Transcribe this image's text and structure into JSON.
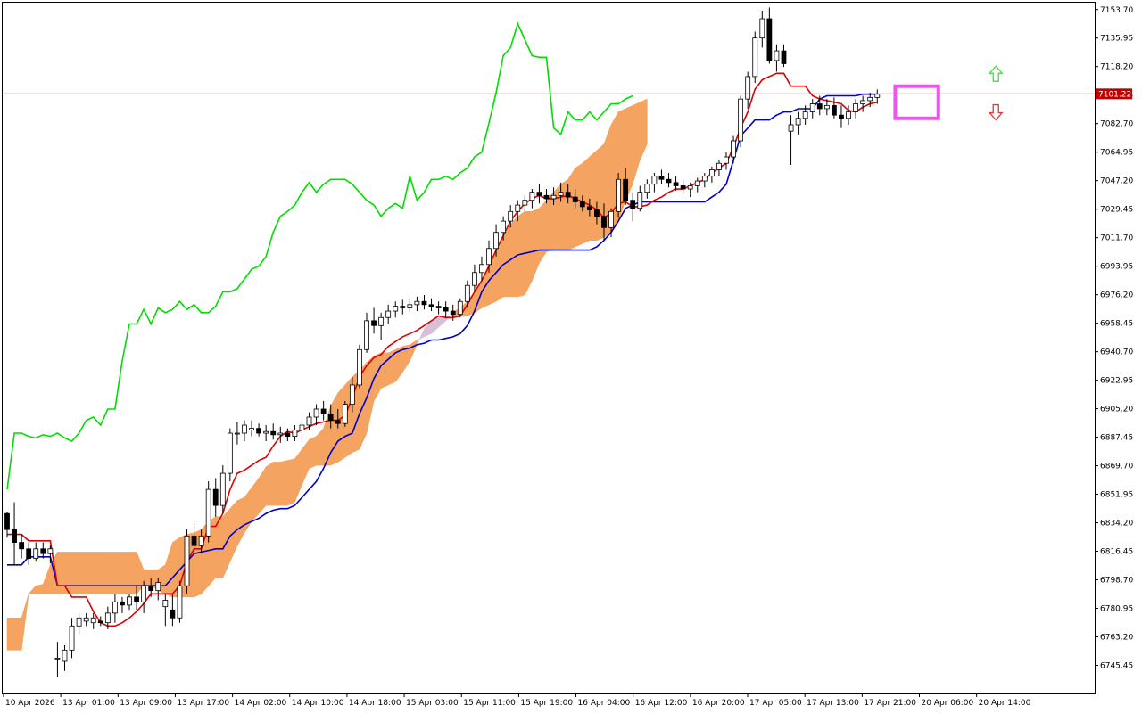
{
  "chart_data": {
    "type": "candlestick",
    "indicator": "Ichimoku Kinko Hyo",
    "price_axis": {
      "labels": [
        "7153.70",
        "7135.95",
        "7118.20",
        "7100.45",
        "7082.70",
        "7064.95",
        "7047.20",
        "7029.45",
        "7011.70",
        "6993.95",
        "6976.20",
        "6958.45",
        "6940.70",
        "6922.95",
        "6905.20",
        "6887.45",
        "6869.70",
        "6851.95",
        "6834.20",
        "6816.45",
        "6798.70",
        "6780.95",
        "6763.20",
        "6745.45"
      ],
      "range": [
        6728,
        7158
      ]
    },
    "time_axis": {
      "labels": [
        "10 Apr 2026",
        "13 Apr 01:00",
        "13 Apr 09:00",
        "13 Apr 17:00",
        "14 Apr 02:00",
        "14 Apr 10:00",
        "14 Apr 18:00",
        "15 Apr 03:00",
        "15 Apr 11:00",
        "15 Apr 19:00",
        "16 Apr 04:00",
        "16 Apr 12:00",
        "16 Apr 20:00",
        "17 Apr 05:00",
        "17 Apr 13:00",
        "17 Apr 21:00",
        "20 Apr 06:00",
        "20 Apr 14:00"
      ]
    },
    "current_price": {
      "label": "7101.22",
      "value": 7101.22,
      "color": "#c00000"
    },
    "colors": {
      "tenkan": "#dd0000",
      "kijun": "#0000cc",
      "chikou": "#00dd00",
      "kumo_bull": "#f4a460",
      "kumo_bear": "#d8bfd8",
      "candle_up": "#ffffff",
      "candle_down": "#000000",
      "arrow_up": "#44dd44",
      "arrow_down": "#ee3333",
      "highlight_box": "#ee55ee"
    },
    "candles": [
      [
        6840,
        6841,
        6825,
        6830
      ],
      [
        6830,
        6847,
        6808,
        6822
      ],
      [
        6822,
        6827,
        6812,
        6818
      ],
      [
        6818,
        6822,
        6808,
        6812
      ],
      [
        6812,
        6822,
        6810,
        6818
      ],
      [
        6818,
        6822,
        6812,
        6815
      ],
      [
        6815,
        6820,
        6809,
        6818
      ],
      [
        6750,
        6760,
        6738,
        6750
      ],
      [
        6748,
        6758,
        6742,
        6755
      ],
      [
        6755,
        6775,
        6750,
        6770
      ],
      [
        6770,
        6778,
        6765,
        6775
      ],
      [
        6773,
        6778,
        6770,
        6775
      ],
      [
        6772,
        6778,
        6768,
        6775
      ],
      [
        6773,
        6776,
        6770,
        6772
      ],
      [
        6772,
        6782,
        6768,
        6778
      ],
      [
        6778,
        6790,
        6772,
        6785
      ],
      [
        6785,
        6788,
        6778,
        6783
      ],
      [
        6783,
        6790,
        6780,
        6788
      ],
      [
        6788,
        6795,
        6780,
        6785
      ],
      [
        6785,
        6798,
        6778,
        6795
      ],
      [
        6795,
        6800,
        6788,
        6792
      ],
      [
        6792,
        6800,
        6786,
        6797
      ],
      [
        6782,
        6790,
        6770,
        6786
      ],
      [
        6780,
        6790,
        6770,
        6775
      ],
      [
        6775,
        6798,
        6772,
        6795
      ],
      [
        6795,
        6830,
        6790,
        6826
      ],
      [
        6826,
        6835,
        6815,
        6820
      ],
      [
        6820,
        6830,
        6815,
        6826
      ],
      [
        6826,
        6860,
        6822,
        6855
      ],
      [
        6855,
        6862,
        6838,
        6845
      ],
      [
        6845,
        6870,
        6840,
        6865
      ],
      [
        6865,
        6893,
        6860,
        6890
      ],
      [
        6890,
        6897,
        6883,
        6890
      ],
      [
        6890,
        6898,
        6885,
        6895
      ],
      [
        6892,
        6898,
        6888,
        6893
      ],
      [
        6893,
        6896,
        6888,
        6890
      ],
      [
        6890,
        6895,
        6885,
        6891
      ],
      [
        6891,
        6896,
        6886,
        6889
      ],
      [
        6889,
        6894,
        6884,
        6890
      ],
      [
        6890,
        6893,
        6885,
        6888
      ],
      [
        6888,
        6895,
        6885,
        6892
      ],
      [
        6892,
        6898,
        6886,
        6895
      ],
      [
        6895,
        6903,
        6892,
        6900
      ],
      [
        6900,
        6908,
        6895,
        6905
      ],
      [
        6905,
        6910,
        6898,
        6902
      ],
      [
        6902,
        6908,
        6893,
        6898
      ],
      [
        6898,
        6905,
        6893,
        6896
      ],
      [
        6896,
        6910,
        6894,
        6908
      ],
      [
        6908,
        6925,
        6903,
        6920
      ],
      [
        6920,
        6945,
        6918,
        6942
      ],
      [
        6942,
        6965,
        6940,
        6960
      ],
      [
        6960,
        6968,
        6952,
        6957
      ],
      [
        6957,
        6965,
        6948,
        6962
      ],
      [
        6962,
        6970,
        6958,
        6966
      ],
      [
        6966,
        6972,
        6962,
        6969
      ],
      [
        6969,
        6973,
        6964,
        6968
      ],
      [
        6968,
        6974,
        6965,
        6970
      ],
      [
        6970,
        6975,
        6966,
        6972
      ],
      [
        6972,
        6976,
        6967,
        6970
      ],
      [
        6970,
        6974,
        6966,
        6969
      ],
      [
        6969,
        6972,
        6964,
        6968
      ],
      [
        6968,
        6972,
        6962,
        6966
      ],
      [
        6966,
        6970,
        6960,
        6964
      ],
      [
        6964,
        6974,
        6962,
        6972
      ],
      [
        6972,
        6985,
        6968,
        6982
      ],
      [
        6982,
        6995,
        6978,
        6990
      ],
      [
        6990,
        7000,
        6985,
        6995
      ],
      [
        6995,
        7010,
        6990,
        7005
      ],
      [
        7005,
        7020,
        7000,
        7015
      ],
      [
        7015,
        7025,
        7010,
        7022
      ],
      [
        7022,
        7032,
        7018,
        7028
      ],
      [
        7028,
        7035,
        7022,
        7032
      ],
      [
        7032,
        7038,
        7028,
        7035
      ],
      [
        7035,
        7042,
        7030,
        7040
      ],
      [
        7040,
        7045,
        7033,
        7038
      ],
      [
        7038,
        7042,
        7033,
        7036
      ],
      [
        7036,
        7043,
        7032,
        7038
      ],
      [
        7038,
        7046,
        7034,
        7040
      ],
      [
        7040,
        7045,
        7033,
        7037
      ],
      [
        7037,
        7042,
        7030,
        7034
      ],
      [
        7034,
        7038,
        7028,
        7031
      ],
      [
        7031,
        7036,
        7025,
        7029
      ],
      [
        7029,
        7034,
        7020,
        7025
      ],
      [
        7025,
        7033,
        7010,
        7018
      ],
      [
        7018,
        7030,
        7012,
        7028
      ],
      [
        7028,
        7052,
        7024,
        7048
      ],
      [
        7048,
        7055,
        7032,
        7035
      ],
      [
        7035,
        7040,
        7022,
        7030
      ],
      [
        7030,
        7044,
        7028,
        7040
      ],
      [
        7040,
        7048,
        7036,
        7045
      ],
      [
        7045,
        7052,
        7040,
        7050
      ],
      [
        7050,
        7054,
        7045,
        7048
      ],
      [
        7048,
        7052,
        7043,
        7046
      ],
      [
        7046,
        7050,
        7041,
        7044
      ],
      [
        7044,
        7048,
        7039,
        7042
      ],
      [
        7042,
        7046,
        7037,
        7044
      ],
      [
        7044,
        7049,
        7040,
        7047
      ],
      [
        7047,
        7052,
        7043,
        7050
      ],
      [
        7050,
        7056,
        7046,
        7054
      ],
      [
        7054,
        7060,
        7050,
        7058
      ],
      [
        7058,
        7065,
        7054,
        7062
      ],
      [
        7062,
        7075,
        7058,
        7072
      ],
      [
        7072,
        7100,
        7068,
        7098
      ],
      [
        7098,
        7115,
        7092,
        7112
      ],
      [
        7112,
        7140,
        7108,
        7136
      ],
      [
        7136,
        7153,
        7130,
        7148
      ],
      [
        7148,
        7155,
        7120,
        7122
      ],
      [
        7122,
        7132,
        7115,
        7128
      ],
      [
        7128,
        7132,
        7118,
        7120
      ],
      [
        7078,
        7088,
        7057,
        7082
      ],
      [
        7082,
        7090,
        7076,
        7086
      ],
      [
        7086,
        7094,
        7082,
        7090
      ],
      [
        7090,
        7098,
        7086,
        7095
      ],
      [
        7095,
        7100,
        7088,
        7092
      ],
      [
        7092,
        7098,
        7088,
        7094
      ],
      [
        7094,
        7099,
        7086,
        7088
      ],
      [
        7088,
        7094,
        7080,
        7086
      ],
      [
        7086,
        7094,
        7082,
        7090
      ],
      [
        7090,
        7098,
        7086,
        7095
      ],
      [
        7095,
        7100,
        7090,
        7097
      ],
      [
        7097,
        7102,
        7093,
        7099
      ],
      [
        7099,
        7104,
        7095,
        7101
      ]
    ],
    "tenkan_sen": [
      6827,
      6827,
      6827,
      6823,
      6823,
      6823,
      6823,
      6795,
      6795,
      6788,
      6788,
      6788,
      6779,
      6772,
      6770,
      6770,
      6772,
      6775,
      6779,
      6784,
      6790,
      6790,
      6790,
      6790,
      6795,
      6810,
      6818,
      6818,
      6832,
      6832,
      6840,
      6855,
      6865,
      6867,
      6870,
      6873,
      6875,
      6882,
      6888,
      6891,
      6890,
      6892,
      6894,
      6896,
      6897,
      6898,
      6898,
      6901,
      6912,
      6925,
      6932,
      6937,
      6939,
      6944,
      6947,
      6950,
      6952,
      6954,
      6957,
      6960,
      6963,
      6962,
      6962,
      6963,
      6970,
      6978,
      6985,
      6994,
      7004,
      7013,
      7022,
      7028,
      7033,
      7036,
      7038,
      7036,
      7036,
      7037,
      7038,
      7036,
      7034,
      7032,
      7029,
      7024,
      7027,
      7033,
      7034,
      7031,
      7031,
      7032,
      7035,
      7037,
      7040,
      7042,
      7042,
      7044,
      7046,
      7048,
      7052,
      7055,
      7058,
      7068,
      7080,
      7090,
      7104,
      7110,
      7112,
      7114,
      7114,
      7106,
      7106,
      7106,
      7100,
      7098,
      7097,
      7096,
      7095,
      7091,
      7090,
      7093,
      7095,
      7096
    ],
    "kijun_sen": [
      6808,
      6808,
      6808,
      6813,
      6813,
      6813,
      6813,
      6795,
      6795,
      6795,
      6795,
      6795,
      6795,
      6795,
      6795,
      6795,
      6795,
      6795,
      6795,
      6795,
      6795,
      6795,
      6795,
      6800,
      6805,
      6810,
      6815,
      6816,
      6817,
      6818,
      6818,
      6826,
      6830,
      6833,
      6835,
      6837,
      6840,
      6842,
      6843,
      6843,
      6845,
      6850,
      6855,
      6860,
      6868,
      6878,
      6885,
      6888,
      6890,
      6902,
      6912,
      6924,
      6932,
      6936,
      6940,
      6942,
      6943,
      6945,
      6946,
      6948,
      6948,
      6949,
      6950,
      6952,
      6957,
      6966,
      6978,
      6985,
      6990,
      6995,
      6998,
      7001,
      7002,
      7003,
      7004,
      7004,
      7004,
      7004,
      7004,
      7004,
      7004,
      7004,
      7006,
      7010,
      7015,
      7022,
      7030,
      7032,
      7034,
      7034,
      7034,
      7034,
      7034,
      7034,
      7034,
      7034,
      7034,
      7034,
      7037,
      7040,
      7045,
      7060,
      7075,
      7080,
      7085,
      7085,
      7085,
      7088,
      7090,
      7090,
      7092,
      7092,
      7092,
      7098,
      7100,
      7100,
      7100,
      7100,
      7100,
      7101,
      7101,
      7101
    ],
    "chikou_span": [
      6855,
      6890,
      6890,
      6888,
      6887,
      6889,
      6888,
      6890,
      6887,
      6885,
      6890,
      6898,
      6900,
      6895,
      6905,
      6905,
      6935,
      6958,
      6958,
      6967,
      6958,
      6968,
      6965,
      6967,
      6972,
      6967,
      6970,
      6965,
      6965,
      6969,
      6978,
      6978,
      6980,
      6986,
      6992,
      6994,
      7000,
      7015,
      7025,
      7028,
      7032,
      7040,
      7046,
      7040,
      7045,
      7048,
      7048,
      7048,
      7045,
      7040,
      7035,
      7032,
      7025,
      7030,
      7033,
      7030,
      7050,
      7035,
      7040,
      7048,
      7048,
      7050,
      7048,
      7052,
      7055,
      7062,
      7065,
      7083,
      7102,
      7125,
      7130,
      7145,
      7135,
      7125,
      7124,
      7124,
      7080,
      7076,
      7090,
      7085,
      7085,
      7090,
      7085,
      7090,
      7095,
      7095,
      7098,
      7100
    ],
    "senkou_span_a": [
      6775,
      6775,
      6775,
      6790,
      6795,
      6796,
      6808,
      6816,
      6816,
      6816,
      6816,
      6816,
      6816,
      6816,
      6816,
      6816,
      6816,
      6816,
      6816,
      6805,
      6805,
      6805,
      6808,
      6822,
      6825,
      6827,
      6828,
      6830,
      6835,
      6838,
      6838,
      6843,
      6848,
      6850,
      6856,
      6862,
      6869,
      6872,
      6872,
      6873,
      6874,
      6880,
      6886,
      6888,
      6893,
      6907,
      6915,
      6920,
      6925,
      6929,
      6934,
      6938,
      6940,
      6940,
      6942,
      6944,
      6945,
      6948,
      6950,
      6952,
      6956,
      6960,
      6965,
      6968,
      6972,
      6978,
      6985,
      6995,
      7003,
      7012,
      7020,
      7025,
      7028,
      7028,
      7030,
      7035,
      7040,
      7045,
      7048,
      7055,
      7058,
      7062,
      7066,
      7070,
      7082,
      7090,
      7092,
      7094,
      7096,
      7098
    ],
    "senkou_span_b": [
      6755,
      6755,
      6755,
      6790,
      6790,
      6790,
      6790,
      6790,
      6790,
      6790,
      6790,
      6790,
      6790,
      6790,
      6790,
      6790,
      6790,
      6790,
      6790,
      6795,
      6796,
      6792,
      6790,
      6788,
      6788,
      6788,
      6788,
      6790,
      6795,
      6800,
      6800,
      6810,
      6820,
      6828,
      6835,
      6840,
      6845,
      6845,
      6845,
      6845,
      6847,
      6858,
      6868,
      6870,
      6870,
      6870,
      6872,
      6875,
      6878,
      6880,
      6890,
      6910,
      6918,
      6920,
      6922,
      6928,
      6935,
      6945,
      6955,
      6960,
      6962,
      6963,
      6963,
      6963,
      6963,
      6965,
      6968,
      6970,
      6972,
      6975,
      6975,
      6975,
      6976,
      6985,
      6996,
      7003,
      7004,
      7004,
      7004,
      7006,
      7008,
      7010,
      7010,
      7012,
      7015,
      7022,
      7035,
      7045,
      7060,
      7070
    ]
  }
}
